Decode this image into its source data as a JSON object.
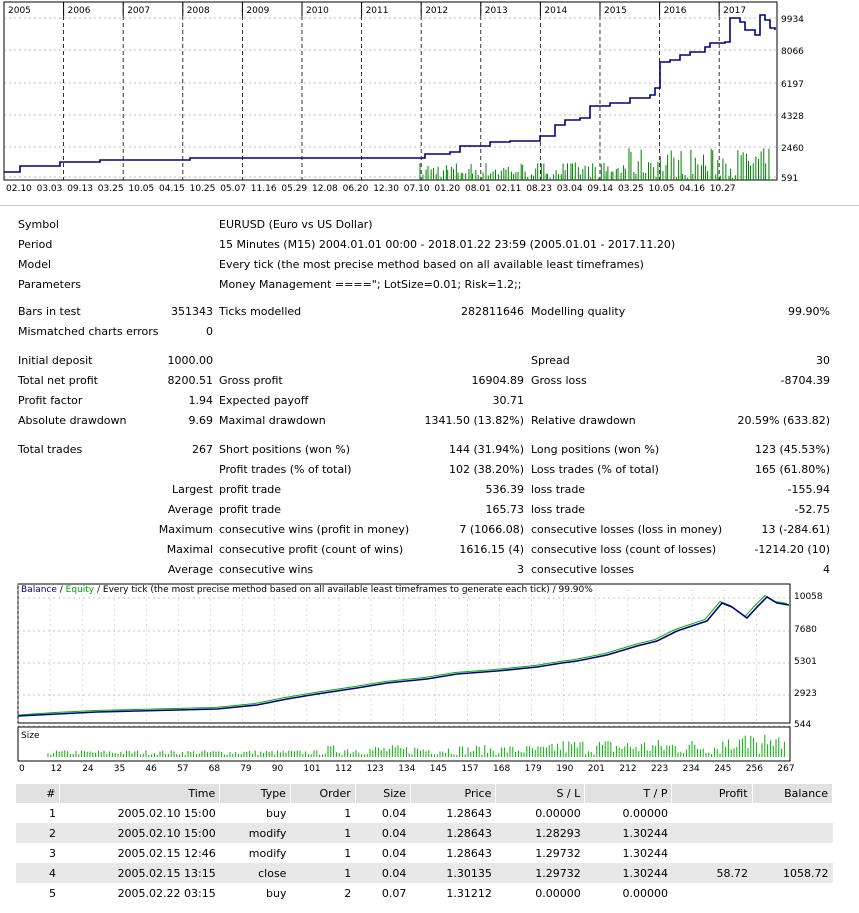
{
  "top_chart": {
    "year_labels": [
      "2005",
      "2006",
      "2007",
      "2008",
      "2009",
      "2010",
      "2011",
      "2012",
      "2013",
      "2014",
      "2015",
      "2016",
      "2017"
    ],
    "y_labels": [
      "9934",
      "8066",
      "6197",
      "4328",
      "2460",
      "591"
    ],
    "x_labels": [
      "02.10",
      "03.03",
      "09.13",
      "03.25",
      "10.05",
      "04.15",
      "10.25",
      "05.07",
      "11.16",
      "05.29",
      "12.08",
      "06.20",
      "12.30",
      "07.10",
      "01.20",
      "08.01",
      "02.11",
      "08.23",
      "03.04",
      "09.14",
      "03.25",
      "10.05",
      "04.16",
      "10.27"
    ],
    "line_color": "#000080",
    "volume_color": "#008000"
  },
  "report": {
    "symbol_label": "Symbol",
    "symbol_value": "EURUSD (Euro vs US Dollar)",
    "period_label": "Period",
    "period_value": "15 Minutes (M15) 2004.01.01 00:00 - 2018.01.22 23:59 (2005.01.01 - 2017.11.20)",
    "model_label": "Model",
    "model_value": "Every tick (the most precise method based on all available least timeframes)",
    "parameters_label": "Parameters",
    "parameters_value": "Money Management ====\"; LotSize=0.01; Risk=1.2;;",
    "bars_label": "Bars in test",
    "bars_value": "351343",
    "ticks_label": "Ticks modelled",
    "ticks_value": "282811646",
    "quality_label": "Modelling quality",
    "quality_value": "99.90%",
    "mismatch_label": "Mismatched charts errors",
    "mismatch_value": "0",
    "deposit_label": "Initial deposit",
    "deposit_value": "1000.00",
    "spread_label": "Spread",
    "spread_value": "30",
    "net_label": "Total net profit",
    "net_value": "8200.51",
    "gross_profit_label": "Gross profit",
    "gross_profit_value": "16904.89",
    "gross_loss_label": "Gross loss",
    "gross_loss_value": "-8704.39",
    "pf_label": "Profit factor",
    "pf_value": "1.94",
    "payoff_label": "Expected payoff",
    "payoff_value": "30.71",
    "abs_dd_label": "Absolute drawdown",
    "abs_dd_value": "9.69",
    "max_dd_label": "Maximal drawdown",
    "max_dd_value": "1341.50 (13.82%)",
    "rel_dd_label": "Relative drawdown",
    "rel_dd_value": "20.59% (633.82)",
    "total_trades_label": "Total trades",
    "total_trades_value": "267",
    "short_label": "Short positions (won %)",
    "short_value": "144 (31.94%)",
    "long_label": "Long positions (won %)",
    "long_value": "123 (45.53%)",
    "profit_trades_label": "Profit trades (% of total)",
    "profit_trades_value": "102 (38.20%)",
    "loss_trades_label": "Loss trades (% of total)",
    "loss_trades_value": "165 (61.80%)",
    "largest_label": "Largest",
    "largest_profit_label": "profit trade",
    "largest_profit_value": "536.39",
    "largest_loss_label": "loss trade",
    "largest_loss_value": "-155.94",
    "average_label": "Average",
    "average_profit_label": "profit trade",
    "average_profit_value": "165.73",
    "average_loss_label": "loss trade",
    "average_loss_value": "-52.75",
    "maximum_label": "Maximum",
    "max_cons_wins_label": "consecutive wins (profit in money)",
    "max_cons_wins_value": "7 (1066.08)",
    "max_cons_losses_label": "consecutive losses (loss in money)",
    "max_cons_losses_value": "13 (-284.61)",
    "maximal_label": "Maximal",
    "maximal_profit_label": "consecutive profit (count of wins)",
    "maximal_profit_value": "1616.15 (4)",
    "maximal_loss_label": "consecutive loss (count of losses)",
    "maximal_loss_value": "-1214.20 (10)",
    "avg2_label": "Average",
    "avg_cons_wins_label": "consecutive wins",
    "avg_cons_wins_value": "3",
    "avg_cons_losses_label": "consecutive losses",
    "avg_cons_losses_value": "4"
  },
  "bottom_chart": {
    "legend_balance": "Balance",
    "legend_sep1": " / ",
    "legend_equity": "Equity",
    "legend_rest": " / Every tick (the most precise method based on all available least timeframes to generate each tick) / 99.90%",
    "y_labels": [
      "10058",
      "7680",
      "5301",
      "2923",
      "544"
    ],
    "size_label": "Size",
    "x_labels": [
      "0",
      "12",
      "24",
      "35",
      "46",
      "57",
      "68",
      "79",
      "90",
      "101",
      "112",
      "123",
      "134",
      "145",
      "157",
      "168",
      "179",
      "190",
      "201",
      "212",
      "223",
      "234",
      "245",
      "256",
      "267"
    ],
    "balance_color": "#000080",
    "equity_color": "#00b000"
  },
  "trades": {
    "headers": [
      "#",
      "Time",
      "Type",
      "Order",
      "Size",
      "Price",
      "S / L",
      "T / P",
      "Profit",
      "Balance"
    ],
    "rows": [
      [
        "1",
        "2005.02.10 15:00",
        "buy",
        "1",
        "0.04",
        "1.28643",
        "0.00000",
        "0.00000",
        "",
        ""
      ],
      [
        "2",
        "2005.02.10 15:00",
        "modify",
        "1",
        "0.04",
        "1.28643",
        "1.28293",
        "1.30244",
        "",
        ""
      ],
      [
        "3",
        "2005.02.15 12:46",
        "modify",
        "1",
        "0.04",
        "1.28643",
        "1.29732",
        "1.30244",
        "",
        ""
      ],
      [
        "4",
        "2005.02.15 13:15",
        "close",
        "1",
        "0.04",
        "1.30135",
        "1.29732",
        "1.30244",
        "58.72",
        "1058.72"
      ],
      [
        "5",
        "2005.02.22 03:15",
        "buy",
        "2",
        "0.07",
        "1.31212",
        "0.00000",
        "0.00000",
        "",
        ""
      ]
    ]
  }
}
